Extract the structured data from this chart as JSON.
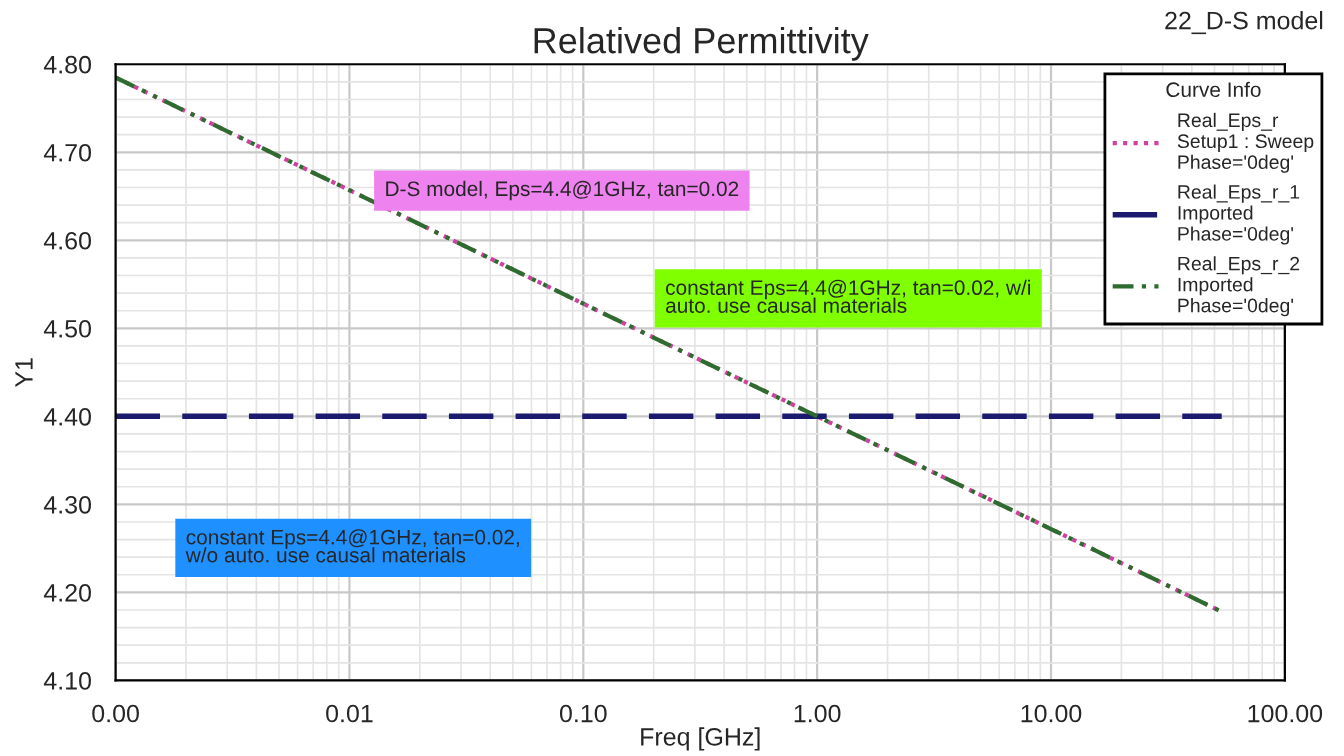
{
  "chart_data": {
    "type": "line",
    "title": "Relatived Permittivity",
    "xlabel": "Freq [GHz]",
    "ylabel": "Y1",
    "legend_title": "Curve Info",
    "x": [
      0.001,
      0.01,
      0.1,
      1,
      10,
      53.7
    ],
    "series": [
      {
        "name": "Real_Eps_r\nSetup1 : Sweep\nPhase='0deg'",
        "color": "#d040a0",
        "line_style": "dotted",
        "values": [
          4.785,
          4.657,
          4.528,
          4.4,
          4.272,
          4.178
        ]
      },
      {
        "name": "Real_Eps_r_1\nImported\nPhase='0deg'",
        "color": "#1a1a6e",
        "line_style": "dashed",
        "values": [
          4.4,
          4.4,
          4.4,
          4.4,
          4.4,
          4.4
        ]
      },
      {
        "name": "Real_Eps_r_2\nImported\nPhase='0deg'",
        "color": "#2e6b2e",
        "line_style": "dashdot",
        "values": [
          4.785,
          4.657,
          4.528,
          4.4,
          4.272,
          4.178
        ]
      }
    ],
    "log": "x",
    "xlim": [
      0.001,
      100
    ],
    "xticks": [
      {
        "value": 0.001,
        "label": "0.00"
      },
      {
        "value": 0.01,
        "label": "0.01"
      },
      {
        "value": 0.1,
        "label": "0.10"
      },
      {
        "value": 1,
        "label": "1.00"
      },
      {
        "value": 10,
        "label": "10.00"
      },
      {
        "value": 100,
        "label": "100.00"
      }
    ],
    "ylim": [
      4.1,
      4.8
    ],
    "yticks": [
      {
        "value": 4.1,
        "label": "4.10"
      },
      {
        "value": 4.2,
        "label": "4.20"
      },
      {
        "value": 4.3,
        "label": "4.30"
      },
      {
        "value": 4.4,
        "label": "4.40"
      },
      {
        "value": 4.5,
        "label": "4.50"
      },
      {
        "value": 4.6,
        "label": "4.60"
      },
      {
        "value": 4.7,
        "label": "4.70"
      },
      {
        "value": 4.8,
        "label": "4.80"
      }
    ],
    "grid": true,
    "legend": "top right",
    "marker": "none",
    "annotations": [
      "22_D-S model",
      "D-S model, Eps=4.4@1GHz, tan=0.02",
      "constant Eps=4.4@1GHz, tan=0.02, w/i\nauto. use causal materials",
      "constant Eps=4.4@1GHz, tan=0.02,\nw/o auto. use causal materials"
    ]
  }
}
